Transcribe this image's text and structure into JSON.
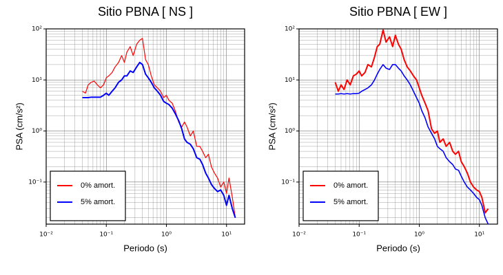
{
  "chart_data": [
    {
      "type": "line",
      "title": "Sitio PBNA [ NS ]",
      "xlabel": "Periodo (s)",
      "ylabel": "PSA (cm/s²)",
      "xscale": "log",
      "yscale": "log",
      "grid": true,
      "legend": "lower left",
      "xlim": [
        0.01,
        20
      ],
      "ylim": [
        0.015,
        100
      ],
      "xticks": [
        {
          "value": 0.01,
          "label": "10⁻²"
        },
        {
          "value": 0.1,
          "label": "10⁻¹"
        },
        {
          "value": 1,
          "label": "10⁰"
        },
        {
          "value": 10,
          "label": "10¹"
        }
      ],
      "yticks": [
        {
          "value": 0.1,
          "label": "10⁻¹"
        },
        {
          "value": 1,
          "label": "10⁰"
        },
        {
          "value": 10,
          "label": "10¹"
        },
        {
          "value": 100,
          "label": "10²"
        }
      ],
      "x": [
        0.04,
        0.045,
        0.05,
        0.056,
        0.063,
        0.071,
        0.08,
        0.09,
        0.1,
        0.11,
        0.125,
        0.14,
        0.16,
        0.18,
        0.2,
        0.22,
        0.25,
        0.28,
        0.32,
        0.36,
        0.4,
        0.45,
        0.5,
        0.56,
        0.63,
        0.71,
        0.8,
        0.9,
        1.0,
        1.1,
        1.25,
        1.4,
        1.6,
        1.8,
        2.0,
        2.2,
        2.5,
        2.8,
        3.2,
        3.6,
        4.0,
        4.5,
        5.0,
        5.6,
        6.3,
        7.1,
        8.0,
        9.0,
        10,
        11,
        12.5,
        14
      ],
      "series": [
        {
          "name": "0% amort.",
          "color": "#ff0000",
          "width": 1.2,
          "values": [
            6,
            5.5,
            8,
            9,
            9.5,
            8,
            7,
            8,
            11,
            12,
            14,
            18,
            22,
            30,
            22,
            35,
            45,
            30,
            50,
            60,
            65,
            25,
            20,
            12,
            8,
            7,
            6,
            4.5,
            5,
            4,
            3.5,
            2.5,
            1.5,
            1.2,
            1.5,
            1.2,
            0.8,
            1.0,
            0.5,
            0.5,
            0.4,
            0.3,
            0.35,
            0.2,
            0.15,
            0.12,
            0.08,
            0.1,
            0.06,
            0.12,
            0.05,
            0.02
          ]
        },
        {
          "name": "5% amort.",
          "color": "#0000ff",
          "width": 2,
          "values": [
            4.5,
            4.5,
            4.5,
            4.6,
            4.6,
            4.6,
            4.6,
            5,
            5.5,
            5,
            6,
            7,
            9,
            10,
            12,
            12,
            15,
            14,
            18,
            22,
            20,
            13,
            11,
            9,
            7,
            6,
            5,
            3.8,
            3.5,
            3.3,
            2.8,
            2.2,
            1.6,
            1.1,
            0.7,
            0.6,
            0.55,
            0.45,
            0.3,
            0.28,
            0.22,
            0.15,
            0.12,
            0.09,
            0.075,
            0.065,
            0.07,
            0.055,
            0.035,
            0.055,
            0.03,
            0.02
          ]
        }
      ]
    },
    {
      "type": "line",
      "title": "Sitio PBNA [ EW ]",
      "xlabel": "Periodo (s)",
      "ylabel": "PSA (cm/s²)",
      "xscale": "log",
      "yscale": "log",
      "grid": true,
      "legend": "lower left",
      "xlim": [
        0.01,
        20
      ],
      "ylim": [
        0.015,
        100
      ],
      "xticks": [
        {
          "value": 0.01,
          "label": "10⁻²"
        },
        {
          "value": 0.1,
          "label": "10⁻¹"
        },
        {
          "value": 1,
          "label": "10⁰"
        },
        {
          "value": 10,
          "label": "10¹"
        }
      ],
      "yticks": [
        {
          "value": 0.1,
          "label": "10⁻¹"
        },
        {
          "value": 1,
          "label": "10⁰"
        },
        {
          "value": 10,
          "label": "10¹"
        },
        {
          "value": 100,
          "label": "10²"
        }
      ],
      "x": [
        0.04,
        0.045,
        0.05,
        0.056,
        0.063,
        0.071,
        0.08,
        0.09,
        0.1,
        0.11,
        0.125,
        0.14,
        0.16,
        0.18,
        0.2,
        0.22,
        0.25,
        0.28,
        0.32,
        0.36,
        0.4,
        0.45,
        0.5,
        0.56,
        0.63,
        0.71,
        0.8,
        0.9,
        1.0,
        1.1,
        1.25,
        1.4,
        1.6,
        1.8,
        2.0,
        2.2,
        2.5,
        2.8,
        3.2,
        3.6,
        4.0,
        4.5,
        5.0,
        5.6,
        6.3,
        7.1,
        8.0,
        9.0,
        10,
        11,
        12.5,
        14
      ],
      "series": [
        {
          "name": "0% amort.",
          "color": "#ff0000",
          "width": 2,
          "values": [
            9,
            6,
            8,
            6.5,
            10,
            8,
            12,
            13,
            15,
            12,
            14,
            20,
            18,
            28,
            45,
            50,
            95,
            55,
            70,
            45,
            75,
            50,
            40,
            25,
            18,
            15,
            12,
            10,
            7,
            5,
            3.5,
            2.5,
            1.1,
            0.9,
            1.0,
            0.6,
            0.7,
            0.5,
            0.6,
            0.4,
            0.35,
            0.4,
            0.25,
            0.2,
            0.15,
            0.1,
            0.08,
            0.07,
            0.065,
            0.05,
            0.025,
            0.03
          ]
        },
        {
          "name": "5% amort.",
          "color": "#0000ff",
          "width": 1.6,
          "values": [
            5.3,
            5.3,
            5.4,
            5.3,
            5.4,
            5.3,
            5.4,
            5.4,
            5.5,
            6,
            6.5,
            7,
            8,
            10,
            13,
            16,
            20,
            17,
            16,
            20,
            20,
            17,
            15,
            12,
            10,
            8,
            6,
            4.5,
            3.5,
            2.5,
            1.8,
            1.2,
            0.9,
            0.7,
            0.5,
            0.45,
            0.4,
            0.3,
            0.25,
            0.22,
            0.18,
            0.17,
            0.13,
            0.1,
            0.08,
            0.07,
            0.06,
            0.05,
            0.045,
            0.035,
            0.02,
            0.015
          ]
        }
      ]
    }
  ]
}
